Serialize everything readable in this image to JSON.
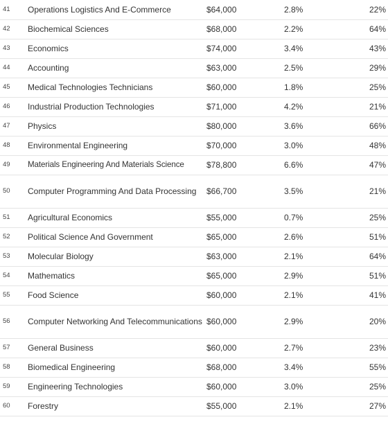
{
  "chart_data": {
    "type": "table",
    "rows": [
      {
        "rank": "41",
        "major": "Operations Logistics And E-Commerce",
        "salary": "$64,000",
        "unemployment": "2.8%",
        "percent": "22%"
      },
      {
        "rank": "42",
        "major": "Biochemical Sciences",
        "salary": "$68,000",
        "unemployment": "2.2%",
        "percent": "64%"
      },
      {
        "rank": "43",
        "major": "Economics",
        "salary": "$74,000",
        "unemployment": "3.4%",
        "percent": "43%"
      },
      {
        "rank": "44",
        "major": "Accounting",
        "salary": "$63,000",
        "unemployment": "2.5%",
        "percent": "29%"
      },
      {
        "rank": "45",
        "major": "Medical Technologies Technicians",
        "salary": "$60,000",
        "unemployment": "1.8%",
        "percent": "25%"
      },
      {
        "rank": "46",
        "major": "Industrial Production Technologies",
        "salary": "$71,000",
        "unemployment": "4.2%",
        "percent": "21%"
      },
      {
        "rank": "47",
        "major": "Physics",
        "salary": "$80,000",
        "unemployment": "3.6%",
        "percent": "66%"
      },
      {
        "rank": "48",
        "major": "Environmental Engineering",
        "salary": "$70,000",
        "unemployment": "3.0%",
        "percent": "48%"
      },
      {
        "rank": "49",
        "major": "Materials Engineering And Materials Science",
        "salary": "$78,800",
        "unemployment": "6.6%",
        "percent": "47%"
      },
      {
        "rank": "50",
        "major": "Computer Programming And Data Processing",
        "salary": "$66,700",
        "unemployment": "3.5%",
        "percent": "21%"
      },
      {
        "rank": "51",
        "major": "Agricultural Economics",
        "salary": "$55,000",
        "unemployment": "0.7%",
        "percent": "25%"
      },
      {
        "rank": "52",
        "major": "Political Science And Government",
        "salary": "$65,000",
        "unemployment": "2.6%",
        "percent": "51%"
      },
      {
        "rank": "53",
        "major": "Molecular Biology",
        "salary": "$63,000",
        "unemployment": "2.1%",
        "percent": "64%"
      },
      {
        "rank": "54",
        "major": "Mathematics",
        "salary": "$65,000",
        "unemployment": "2.9%",
        "percent": "51%"
      },
      {
        "rank": "55",
        "major": "Food Science",
        "salary": "$60,000",
        "unemployment": "2.1%",
        "percent": "41%"
      },
      {
        "rank": "56",
        "major": "Computer Networking And Telecommunications",
        "salary": "$60,000",
        "unemployment": "2.9%",
        "percent": "20%"
      },
      {
        "rank": "57",
        "major": "General Business",
        "salary": "$60,000",
        "unemployment": "2.7%",
        "percent": "23%"
      },
      {
        "rank": "58",
        "major": "Biomedical Engineering",
        "salary": "$68,000",
        "unemployment": "3.4%",
        "percent": "55%"
      },
      {
        "rank": "59",
        "major": "Engineering Technologies",
        "salary": "$60,000",
        "unemployment": "3.0%",
        "percent": "25%"
      },
      {
        "rank": "60",
        "major": "Forestry",
        "salary": "$55,000",
        "unemployment": "2.1%",
        "percent": "27%"
      }
    ]
  }
}
